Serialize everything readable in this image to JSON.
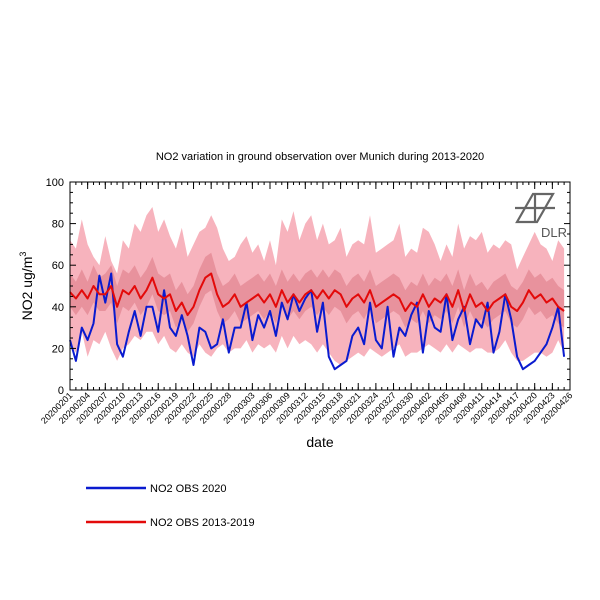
{
  "chart_data": {
    "type": "line",
    "title": "NO2 variation in ground observation over Munich during 2013-2020",
    "xlabel": "date",
    "ylabel": "NO2  ug/m",
    "ylabel_sup": "3",
    "ylim": [
      0,
      100
    ],
    "yticks": [
      0,
      20,
      40,
      60,
      80,
      100
    ],
    "x_start": "2020-02-01",
    "x_end": "2020-04-26",
    "x_tick_labels": [
      "20200201",
      "20200204",
      "20200207",
      "20200210",
      "20200213",
      "20200216",
      "20200219",
      "20200222",
      "20200225",
      "20200228",
      "20200303",
      "20200306",
      "20200309",
      "20200312",
      "20200315",
      "20200318",
      "20200321",
      "20200324",
      "20200327",
      "20200330",
      "20200402",
      "20200405",
      "20200408",
      "20200411",
      "20200414",
      "20200417",
      "20200420",
      "20200423",
      "20200426"
    ],
    "x_minor_step_days": 1,
    "grid": false,
    "logo_text": "DLR",
    "band_colors": {
      "outer": "#f7b3bd",
      "inner": "#e58c98"
    },
    "series": [
      {
        "name": "NO2 OBS 2020",
        "color": "#0a1bcf",
        "x": [
          "2020-02-01",
          "2020-02-02",
          "2020-02-03",
          "2020-02-04",
          "2020-02-05",
          "2020-02-06",
          "2020-02-07",
          "2020-02-08",
          "2020-02-09",
          "2020-02-10",
          "2020-02-11",
          "2020-02-12",
          "2020-02-13",
          "2020-02-14",
          "2020-02-15",
          "2020-02-16",
          "2020-02-17",
          "2020-02-18",
          "2020-02-19",
          "2020-02-20",
          "2020-02-21",
          "2020-02-22",
          "2020-02-23",
          "2020-02-24",
          "2020-02-25",
          "2020-02-26",
          "2020-02-27",
          "2020-02-28",
          "2020-02-29",
          "2020-03-01",
          "2020-03-02",
          "2020-03-03",
          "2020-03-04",
          "2020-03-05",
          "2020-03-06",
          "2020-03-07",
          "2020-03-08",
          "2020-03-09",
          "2020-03-10",
          "2020-03-11",
          "2020-03-12",
          "2020-03-13",
          "2020-03-14",
          "2020-03-15",
          "2020-03-16",
          "2020-03-17",
          "2020-03-18",
          "2020-03-19",
          "2020-03-20",
          "2020-03-21",
          "2020-03-22",
          "2020-03-23",
          "2020-03-24",
          "2020-03-25",
          "2020-03-26",
          "2020-03-27",
          "2020-03-28",
          "2020-03-29",
          "2020-03-30",
          "2020-03-31",
          "2020-04-01",
          "2020-04-02",
          "2020-04-03",
          "2020-04-04",
          "2020-04-05",
          "2020-04-06",
          "2020-04-07",
          "2020-04-08",
          "2020-04-09",
          "2020-04-10",
          "2020-04-11",
          "2020-04-12",
          "2020-04-13",
          "2020-04-14",
          "2020-04-15",
          "2020-04-16",
          "2020-04-17",
          "2020-04-18",
          "2020-04-19",
          "2020-04-20",
          "2020-04-21",
          "2020-04-22",
          "2020-04-23",
          "2020-04-24",
          "2020-04-25"
        ],
        "values": [
          24,
          14,
          30,
          24,
          32,
          55,
          42,
          56,
          22,
          16,
          28,
          38,
          26,
          40,
          40,
          28,
          48,
          30,
          26,
          36,
          26,
          12,
          30,
          28,
          20,
          22,
          34,
          18,
          30,
          30,
          42,
          24,
          36,
          30,
          38,
          26,
          42,
          34,
          46,
          38,
          44,
          48,
          28,
          42,
          16,
          10,
          12,
          14,
          26,
          30,
          22,
          42,
          24,
          20,
          40,
          16,
          30,
          26,
          36,
          42,
          18,
          38,
          30,
          28,
          46,
          24,
          34,
          40,
          22,
          34,
          30,
          42,
          18,
          28,
          46,
          34,
          16,
          10,
          12,
          14,
          18,
          22,
          30,
          40,
          16
        ]
      },
      {
        "name": "NO2 OBS 2013-2019",
        "color": "#e30a0a",
        "x": [
          "2020-02-01",
          "2020-02-02",
          "2020-02-03",
          "2020-02-04",
          "2020-02-05",
          "2020-02-06",
          "2020-02-07",
          "2020-02-08",
          "2020-02-09",
          "2020-02-10",
          "2020-02-11",
          "2020-02-12",
          "2020-02-13",
          "2020-02-14",
          "2020-02-15",
          "2020-02-16",
          "2020-02-17",
          "2020-02-18",
          "2020-02-19",
          "2020-02-20",
          "2020-02-21",
          "2020-02-22",
          "2020-02-23",
          "2020-02-24",
          "2020-02-25",
          "2020-02-26",
          "2020-02-27",
          "2020-02-28",
          "2020-02-29",
          "2020-03-01",
          "2020-03-02",
          "2020-03-03",
          "2020-03-04",
          "2020-03-05",
          "2020-03-06",
          "2020-03-07",
          "2020-03-08",
          "2020-03-09",
          "2020-03-10",
          "2020-03-11",
          "2020-03-12",
          "2020-03-13",
          "2020-03-14",
          "2020-03-15",
          "2020-03-16",
          "2020-03-17",
          "2020-03-18",
          "2020-03-19",
          "2020-03-20",
          "2020-03-21",
          "2020-03-22",
          "2020-03-23",
          "2020-03-24",
          "2020-03-25",
          "2020-03-26",
          "2020-03-27",
          "2020-03-28",
          "2020-03-29",
          "2020-03-30",
          "2020-03-31",
          "2020-04-01",
          "2020-04-02",
          "2020-04-03",
          "2020-04-04",
          "2020-04-05",
          "2020-04-06",
          "2020-04-07",
          "2020-04-08",
          "2020-04-09",
          "2020-04-10",
          "2020-04-11",
          "2020-04-12",
          "2020-04-13",
          "2020-04-14",
          "2020-04-15",
          "2020-04-16",
          "2020-04-17",
          "2020-04-18",
          "2020-04-19",
          "2020-04-20",
          "2020-04-21",
          "2020-04-22",
          "2020-04-23",
          "2020-04-24",
          "2020-04-25"
        ],
        "values": [
          47,
          44,
          48,
          44,
          50,
          46,
          46,
          50,
          40,
          48,
          46,
          50,
          44,
          48,
          54,
          46,
          44,
          46,
          38,
          42,
          36,
          40,
          48,
          54,
          56,
          46,
          40,
          42,
          46,
          40,
          42,
          44,
          46,
          42,
          46,
          40,
          48,
          42,
          46,
          42,
          46,
          48,
          44,
          48,
          44,
          48,
          46,
          40,
          44,
          46,
          42,
          48,
          40,
          42,
          44,
          46,
          44,
          38,
          42,
          40,
          46,
          40,
          44,
          42,
          46,
          40,
          48,
          38,
          46,
          40,
          42,
          38,
          42,
          44,
          46,
          40,
          38,
          42,
          48,
          44,
          46,
          42,
          44,
          40,
          38
        ]
      }
    ],
    "bands": {
      "x_start": "2020-02-01",
      "outer_upper": [
        72,
        68,
        82,
        70,
        64,
        60,
        74,
        62,
        56,
        72,
        68,
        80,
        76,
        84,
        88,
        76,
        82,
        74,
        68,
        78,
        64,
        70,
        76,
        78,
        84,
        78,
        68,
        62,
        64,
        70,
        74,
        66,
        70,
        62,
        72,
        60,
        82,
        76,
        86,
        72,
        80,
        84,
        72,
        80,
        70,
        72,
        78,
        64,
        70,
        72,
        70,
        84,
        66,
        68,
        70,
        72,
        80,
        64,
        68,
        66,
        78,
        76,
        70,
        62,
        70,
        64,
        80,
        68,
        74,
        72,
        76,
        66,
        70,
        68,
        72,
        70,
        58,
        64,
        70,
        76,
        70,
        68,
        62,
        72,
        68
      ],
      "outer_lower": [
        22,
        18,
        28,
        16,
        24,
        22,
        28,
        20,
        14,
        20,
        22,
        26,
        24,
        28,
        28,
        22,
        26,
        20,
        18,
        22,
        18,
        16,
        22,
        18,
        16,
        20,
        22,
        18,
        20,
        20,
        24,
        18,
        22,
        20,
        22,
        18,
        26,
        20,
        26,
        22,
        24,
        22,
        18,
        22,
        18,
        14,
        12,
        14,
        16,
        18,
        16,
        20,
        18,
        16,
        18,
        20,
        22,
        16,
        18,
        18,
        20,
        22,
        20,
        18,
        22,
        18,
        22,
        20,
        18,
        20,
        20,
        18,
        18,
        20,
        24,
        18,
        14,
        14,
        16,
        18,
        18,
        16,
        18,
        24,
        18
      ],
      "inner_upper": [
        56,
        52,
        58,
        52,
        60,
        54,
        56,
        60,
        50,
        58,
        56,
        60,
        54,
        58,
        64,
        56,
        54,
        56,
        48,
        52,
        46,
        50,
        58,
        64,
        66,
        56,
        50,
        52,
        56,
        50,
        52,
        54,
        56,
        52,
        56,
        50,
        58,
        52,
        56,
        52,
        56,
        58,
        54,
        58,
        54,
        58,
        56,
        50,
        54,
        56,
        52,
        58,
        50,
        52,
        54,
        56,
        54,
        48,
        52,
        50,
        56,
        50,
        54,
        52,
        56,
        50,
        58,
        48,
        56,
        50,
        52,
        48,
        52,
        54,
        56,
        50,
        48,
        52,
        58,
        54,
        56,
        52,
        54,
        50,
        48
      ],
      "inner_lower": [
        40,
        36,
        40,
        36,
        42,
        38,
        38,
        42,
        32,
        40,
        38,
        42,
        36,
        40,
        46,
        38,
        36,
        38,
        30,
        34,
        28,
        32,
        40,
        46,
        48,
        38,
        32,
        34,
        38,
        32,
        34,
        36,
        38,
        34,
        38,
        32,
        40,
        34,
        38,
        34,
        38,
        40,
        36,
        40,
        36,
        40,
        38,
        32,
        36,
        38,
        34,
        40,
        32,
        34,
        36,
        38,
        36,
        30,
        34,
        32,
        38,
        32,
        36,
        34,
        38,
        32,
        40,
        30,
        38,
        32,
        34,
        30,
        34,
        36,
        38,
        32,
        30,
        34,
        40,
        36,
        38,
        34,
        36,
        32,
        30
      ]
    }
  }
}
